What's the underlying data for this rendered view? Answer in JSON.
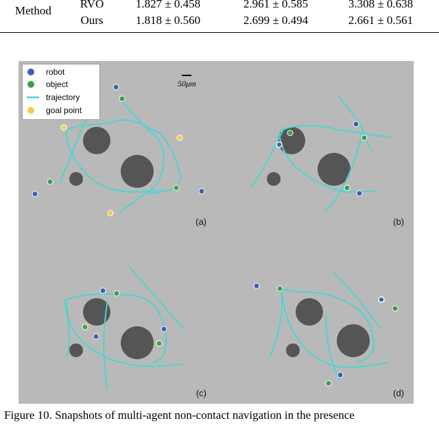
{
  "table": {
    "header": "Method",
    "rows": [
      {
        "name": "RVO",
        "values": [
          "1.827 ± 0.458",
          "2.961 ± 0.585",
          "3.308 ± 0.638"
        ]
      },
      {
        "name": "Ours",
        "values": [
          "1.818 ± 0.560",
          "2.699 ± 0.494",
          "2.661 ± 0.561"
        ]
      }
    ]
  },
  "figure": {
    "legend": {
      "robot": "robot",
      "object": "object",
      "trajectory": "trajectory",
      "goal": "goal point"
    },
    "scale_label": "50μm",
    "panels": [
      "(a)",
      "(b)",
      "(c)",
      "(d)"
    ]
  },
  "colors": {
    "robot": "#3f5fb5",
    "object": "#3f9f48",
    "trajectory": "#4fd3cf",
    "goal": "#f3cc4a",
    "obstacle": "#555555",
    "background": "#b8b8b8"
  },
  "caption": "Figure 10.  Snapshots of multi-agent non-contact navigation in the presence"
}
